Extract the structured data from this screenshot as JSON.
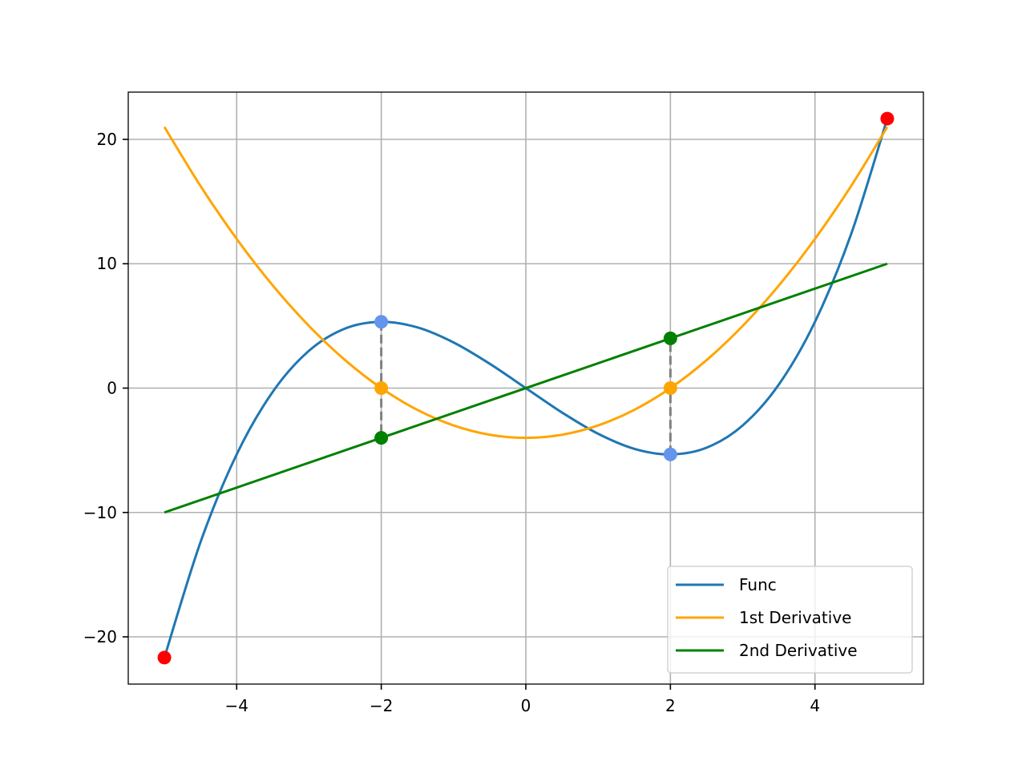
{
  "chart_data": {
    "type": "line",
    "title": "",
    "xlabel": "",
    "ylabel": "",
    "xlim": [
      -5.5,
      5.5
    ],
    "ylim": [
      -23.8,
      23.8
    ],
    "x_ticks": [
      -4,
      -2,
      0,
      2,
      4
    ],
    "x_tick_labels": [
      "−4",
      "−2",
      "0",
      "2",
      "4"
    ],
    "y_ticks": [
      -20,
      -10,
      0,
      10,
      20
    ],
    "y_tick_labels": [
      "−20",
      "−10",
      "0",
      "10",
      "20"
    ],
    "grid": true,
    "legend_position": "lower-right",
    "series": [
      {
        "name": "Func",
        "color": "#1f77b4",
        "x": [
          -5.0,
          -4.5,
          -4.0,
          -3.5,
          -3.0,
          -2.5,
          -2.0,
          -1.5,
          -1.0,
          -0.5,
          0.0,
          0.5,
          1.0,
          1.5,
          2.0,
          2.5,
          3.0,
          3.5,
          4.0,
          4.5,
          5.0
        ],
        "y": [
          -21.67,
          -12.38,
          -5.33,
          -0.29,
          3.0,
          4.79,
          5.33,
          4.88,
          3.67,
          1.96,
          0.0,
          -1.96,
          -3.67,
          -4.88,
          -5.33,
          -4.79,
          -3.0,
          0.29,
          5.33,
          12.38,
          21.67
        ]
      },
      {
        "name": "1st Derivative",
        "color": "#ffa500",
        "x": [
          -5.0,
          -4.5,
          -4.0,
          -3.5,
          -3.0,
          -2.5,
          -2.0,
          -1.5,
          -1.0,
          -0.5,
          0.0,
          0.5,
          1.0,
          1.5,
          2.0,
          2.5,
          3.0,
          3.5,
          4.0,
          4.5,
          5.0
        ],
        "y": [
          21.0,
          16.25,
          12.0,
          8.25,
          5.0,
          2.25,
          0.0,
          -1.75,
          -3.0,
          -3.75,
          -4.0,
          -3.75,
          -3.0,
          -1.75,
          0.0,
          2.25,
          5.0,
          8.25,
          12.0,
          16.25,
          21.0
        ]
      },
      {
        "name": "2nd Derivative",
        "color": "#008000",
        "x": [
          -5.0,
          5.0
        ],
        "y": [
          -10.0,
          10.0
        ]
      }
    ],
    "vertical_lines": [
      {
        "x": 2,
        "y_from": -5.33,
        "y_to": 4,
        "color": "#808080",
        "style": "dashed"
      },
      {
        "x": -2,
        "y_from": 5.33,
        "y_to": -4,
        "color": "#808080",
        "style": "dashed"
      }
    ],
    "markers": [
      {
        "x": -5,
        "y": -21.67,
        "color": "#ff0000"
      },
      {
        "x": 5,
        "y": 21.67,
        "color": "#ff0000"
      },
      {
        "x": -2,
        "y": 5.33,
        "color": "#6495ed"
      },
      {
        "x": 2,
        "y": -5.33,
        "color": "#6495ed"
      },
      {
        "x": -2,
        "y": 0,
        "color": "#ffa500"
      },
      {
        "x": 2,
        "y": 0,
        "color": "#ffa500"
      },
      {
        "x": -2,
        "y": -4,
        "color": "#008000"
      },
      {
        "x": 2,
        "y": 4,
        "color": "#008000"
      }
    ],
    "legend": [
      "Func",
      "1st Derivative",
      "2nd Derivative"
    ]
  }
}
